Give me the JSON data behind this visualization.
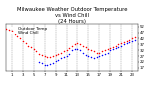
{
  "title": "Milwaukee Weather Outdoor Temperature\nvs Wind Chill\n(24 Hours)",
  "title_fontsize": 3.8,
  "background_color": "#ffffff",
  "plot_bg_color": "#ffffff",
  "grid_color": "#888888",
  "temp_color": "#ff0000",
  "windchill_color": "#0000ff",
  "dot_size": 1.2,
  "ylim": [
    14,
    54
  ],
  "xlim": [
    0,
    24
  ],
  "yticks": [
    17,
    22,
    27,
    32,
    37,
    42,
    47,
    52
  ],
  "xtick_vals": [
    1,
    3,
    5,
    7,
    9,
    11,
    13,
    15,
    17,
    19,
    21,
    23
  ],
  "vgrid_positions": [
    1,
    3,
    5,
    7,
    9,
    11,
    13,
    15,
    17,
    19,
    21,
    23
  ],
  "temp_x": [
    0,
    0.5,
    1,
    1.5,
    2,
    2.5,
    3,
    3.5,
    4,
    4.5,
    5,
    5.5,
    6,
    6.5,
    7,
    7.5,
    8,
    8.5,
    9,
    9.5,
    10,
    10.5,
    11,
    11.5,
    12,
    12.5,
    13,
    13.5,
    14,
    14.5,
    15,
    15.5,
    16,
    16.5,
    17,
    17.5,
    18,
    18.5,
    19,
    19.5,
    20,
    20.5,
    21,
    21.5,
    22,
    22.5,
    23,
    23.5
  ],
  "temp_y": [
    50,
    49,
    48,
    46,
    44,
    42,
    40,
    38,
    36,
    35,
    33,
    31,
    29,
    27.5,
    27,
    26.5,
    26,
    27,
    28,
    29,
    30,
    31,
    32,
    34,
    36,
    37,
    38,
    37,
    36,
    35,
    33,
    32,
    31,
    30,
    30,
    31,
    32,
    33,
    34,
    35,
    36,
    37,
    38,
    39,
    40,
    41,
    42,
    43
  ],
  "wc_x": [
    6,
    6.5,
    7,
    7.5,
    8,
    8.5,
    9,
    9.5,
    10,
    10.5,
    11,
    11.5,
    12,
    12.5,
    13,
    13.5,
    14,
    14.5,
    15,
    15.5,
    16,
    16.5,
    17,
    17.5,
    18,
    18.5,
    19,
    19.5,
    20,
    20.5,
    21,
    21.5,
    22,
    22.5,
    23,
    23.5
  ],
  "wc_y": [
    22,
    21,
    19,
    19,
    20,
    21,
    23,
    24,
    25,
    26,
    27,
    29,
    32,
    33,
    33,
    32,
    30,
    28,
    27,
    26,
    25,
    26,
    27,
    28,
    29,
    30,
    32,
    33,
    34,
    35,
    36,
    37,
    38,
    39,
    40,
    41
  ],
  "tick_labelsize": 2.8,
  "legend_entries": [
    "Outdoor Temp",
    "Wind Chill"
  ],
  "legend_fontsize": 3.0
}
